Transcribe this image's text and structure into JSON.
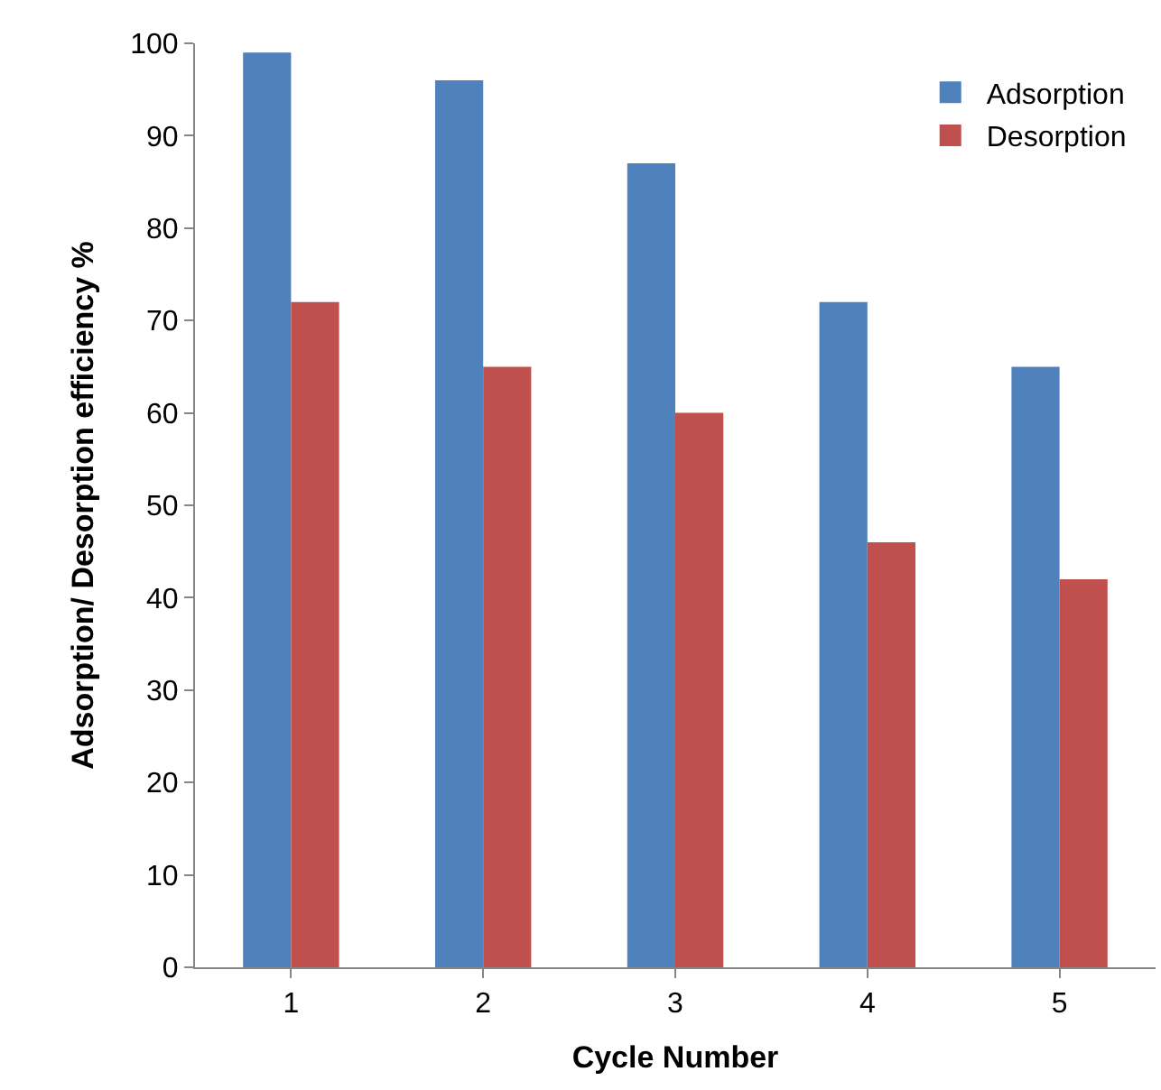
{
  "chart_data": {
    "type": "bar",
    "xlabel": "Cycle Number",
    "ylabel": "Adsorption/ Desorption efficiency %",
    "categories": [
      "1",
      "2",
      "3",
      "4",
      "5"
    ],
    "series": [
      {
        "name": "Adsorption",
        "color": "#4f81bd",
        "values": [
          99,
          96,
          87,
          72,
          65
        ]
      },
      {
        "name": "Desorption",
        "color": "#c0504d",
        "values": [
          72,
          65,
          60,
          46,
          42
        ]
      }
    ],
    "ylim": [
      0,
      100
    ],
    "yticks": [
      0,
      10,
      20,
      30,
      40,
      50,
      60,
      70,
      80,
      90,
      100
    ],
    "grid": false,
    "legend": "top right"
  }
}
